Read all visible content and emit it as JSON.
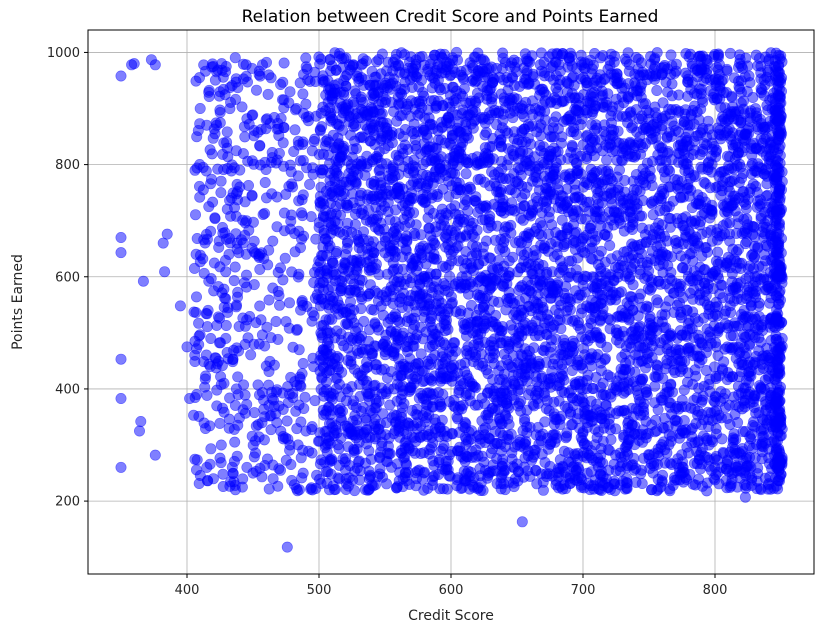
{
  "chart_data": {
    "type": "scatter",
    "title": "Relation between Credit Score and Points Earned",
    "xlabel": "Credit Score",
    "ylabel": "Points Earned",
    "xlim": [
      325,
      875
    ],
    "ylim": [
      70,
      1040
    ],
    "xticks": [
      400,
      500,
      600,
      700,
      800
    ],
    "yticks": [
      200,
      400,
      600,
      800,
      1000
    ],
    "grid": true,
    "marker_color": "#0000ff",
    "marker_alpha": 0.5,
    "series": [
      {
        "points": [
          [
            350,
            958
          ],
          [
            358,
            978
          ],
          [
            360,
            980
          ],
          [
            373,
            987
          ],
          [
            376,
            978
          ],
          [
            350,
            670
          ],
          [
            350,
            643
          ],
          [
            367,
            592
          ],
          [
            382,
            660
          ],
          [
            385,
            676
          ],
          [
            383,
            609
          ],
          [
            395,
            548
          ],
          [
            350,
            453
          ],
          [
            350,
            383
          ],
          [
            365,
            342
          ],
          [
            364,
            325
          ],
          [
            350,
            260
          ],
          [
            376,
            282
          ],
          [
            400,
            475
          ],
          [
            402,
            383
          ],
          [
            405,
            353
          ],
          [
            410,
            900
          ],
          [
            412,
            632
          ],
          [
            413,
            606
          ],
          [
            416,
            540
          ],
          [
            420,
            975
          ],
          [
            425,
            930
          ],
          [
            430,
            840
          ],
          [
            440,
            760
          ],
          [
            445,
            700
          ],
          [
            418,
            490
          ],
          [
            422,
            455
          ],
          [
            428,
            410
          ],
          [
            432,
            330
          ],
          [
            426,
            300
          ],
          [
            438,
            280
          ],
          [
            450,
            250
          ],
          [
            442,
            225
          ],
          [
            415,
            260
          ],
          [
            420,
            240
          ],
          [
            476,
            118
          ],
          [
            654,
            163
          ],
          [
            823,
            207
          ],
          [
            817,
            225
          ],
          [
            805,
            260
          ],
          [
            460,
            880
          ],
          [
            470,
            820
          ],
          [
            480,
            760
          ],
          [
            455,
            640
          ],
          [
            465,
            580
          ],
          [
            475,
            520
          ],
          [
            485,
            470
          ],
          [
            458,
            380
          ],
          [
            468,
            340
          ],
          [
            478,
            300
          ],
          [
            488,
            250
          ],
          [
            495,
            220
          ],
          [
            490,
            990
          ],
          [
            462,
            960
          ],
          [
            478,
            930
          ]
        ]
      }
    ],
    "density_regions": [
      {
        "x": [
          500,
          850
        ],
        "y": [
          218,
          1000
        ],
        "count": 5200
      },
      {
        "x": [
          405,
          500
        ],
        "y": [
          218,
          1000
        ],
        "count": 520
      },
      {
        "x": [
          845,
          851
        ],
        "y": [
          225,
          1000
        ],
        "count": 260
      }
    ]
  }
}
